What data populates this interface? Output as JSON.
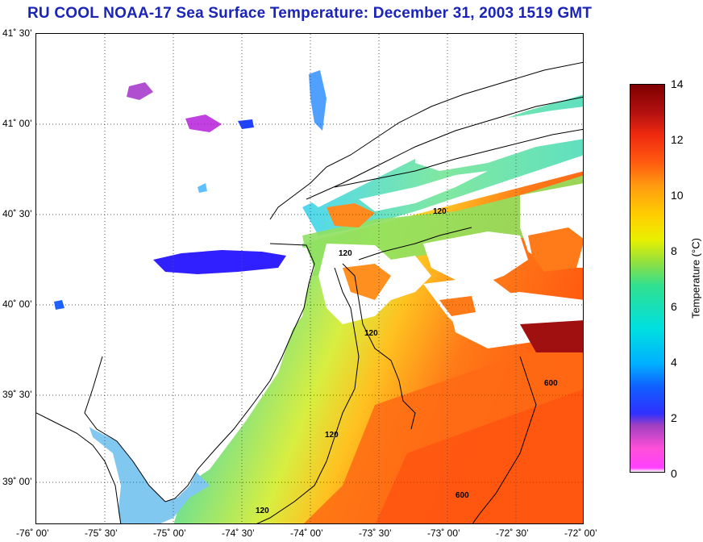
{
  "title": "RU COOL  NOAA-17  Sea Surface Temperature:  December 31, 2003 1519 GMT",
  "map": {
    "lat_labels": [
      "41˚ 30’",
      "41˚ 00’",
      "40˚ 30’",
      "40˚ 00’",
      "39˚ 30’",
      "39˚ 00’"
    ],
    "lon_labels": [
      "-76˚ 00’",
      "-75˚ 30’",
      "-75˚ 00’",
      "-74˚ 30’",
      "-74˚ 00’",
      "-73˚ 30’",
      "-73˚ 00’",
      "-72˚ 30’",
      "-72˚ 00’"
    ],
    "contours": [
      {
        "label": "120"
      },
      {
        "label": "120"
      },
      {
        "label": "120"
      },
      {
        "label": "120"
      },
      {
        "label": "120"
      },
      {
        "label": "600"
      },
      {
        "label": "600"
      }
    ]
  },
  "colorbar": {
    "label": "Temperature (°C)",
    "ticks": [
      "14",
      "12",
      "10",
      "8",
      "6",
      "4",
      "2",
      "0"
    ],
    "min": 0,
    "max": 14,
    "colors": [
      "#ff40ff",
      "#3030ff",
      "#00b0ff",
      "#30e090",
      "#e8f000",
      "#ff9a10",
      "#f02a10",
      "#800000"
    ]
  }
}
